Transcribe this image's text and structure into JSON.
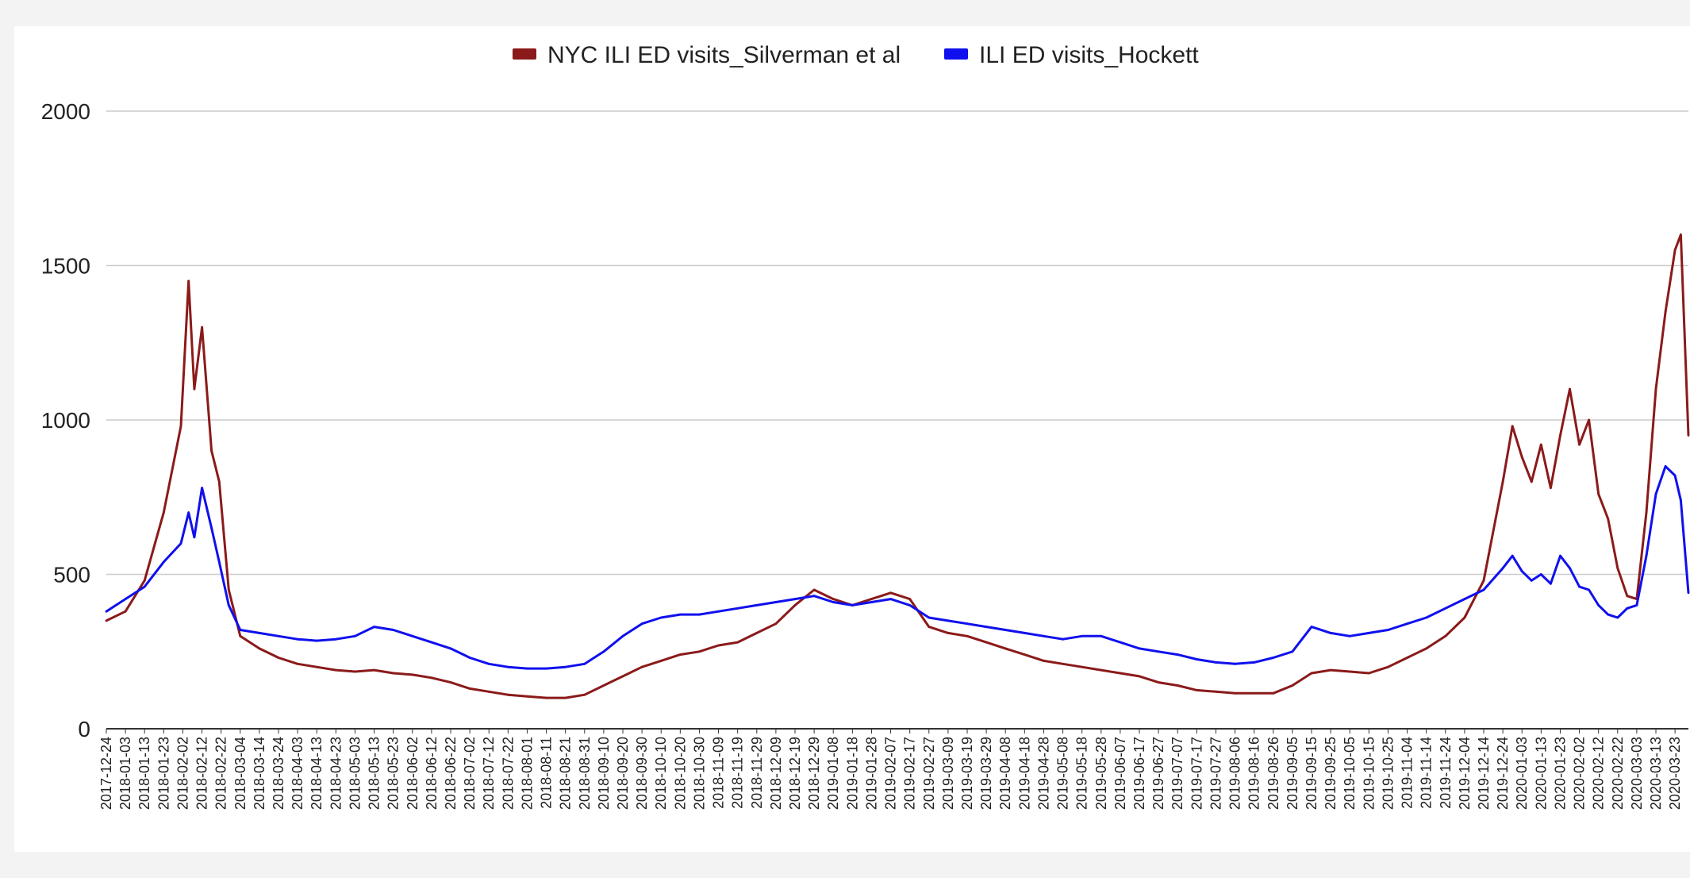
{
  "chart_data": {
    "type": "line",
    "title": "",
    "xlabel": "",
    "ylabel": "",
    "x_start": "2017-12-24",
    "x_end": "2020-03-30",
    "ylim": [
      0,
      2000
    ],
    "yticks": [
      0,
      500,
      1000,
      1500,
      2000
    ],
    "grid": true,
    "legend_position": "top-center",
    "xtick_labels": [
      "2017-12-24",
      "2018-01-03",
      "2018-01-13",
      "2018-01-23",
      "2018-02-02",
      "2018-02-12",
      "2018-02-22",
      "2018-03-04",
      "2018-03-14",
      "2018-03-24",
      "2018-04-03",
      "2018-04-13",
      "2018-04-23",
      "2018-05-03",
      "2018-05-13",
      "2018-05-23",
      "2018-06-02",
      "2018-06-12",
      "2018-06-22",
      "2018-07-02",
      "2018-07-12",
      "2018-07-22",
      "2018-08-01",
      "2018-08-11",
      "2018-08-21",
      "2018-08-31",
      "2018-09-10",
      "2018-09-20",
      "2018-09-30",
      "2018-10-10",
      "2018-10-20",
      "2018-10-30",
      "2018-11-09",
      "2018-11-19",
      "2018-11-29",
      "2018-12-09",
      "2018-12-19",
      "2018-12-29",
      "2019-01-08",
      "2019-01-18",
      "2019-01-28",
      "2019-02-07",
      "2019-02-17",
      "2019-02-27",
      "2019-03-09",
      "2019-03-19",
      "2019-03-29",
      "2019-04-08",
      "2019-04-18",
      "2019-04-28",
      "2019-05-08",
      "2019-05-18",
      "2019-05-28",
      "2019-06-07",
      "2019-06-17",
      "2019-06-27",
      "2019-07-07",
      "2019-07-17",
      "2019-07-27",
      "2019-08-06",
      "2019-08-16",
      "2019-08-26",
      "2019-09-05",
      "2019-09-15",
      "2019-09-25",
      "2019-10-05",
      "2019-10-15",
      "2019-10-25",
      "2019-11-04",
      "2019-11-14",
      "2019-11-24",
      "2019-12-04",
      "2019-12-14",
      "2019-12-24",
      "2020-01-03",
      "2020-01-13",
      "2020-01-23",
      "2020-02-02",
      "2020-02-12",
      "2020-02-22",
      "2020-03-03",
      "2020-03-13",
      "2020-03-23"
    ],
    "series": [
      {
        "name": "NYC ILI ED visits_Silverman et al",
        "color": "#8b1a1a",
        "points": [
          [
            "2017-12-24",
            350
          ],
          [
            "2018-01-03",
            380
          ],
          [
            "2018-01-13",
            480
          ],
          [
            "2018-01-23",
            700
          ],
          [
            "2018-02-01",
            980
          ],
          [
            "2018-02-05",
            1450
          ],
          [
            "2018-02-08",
            1100
          ],
          [
            "2018-02-12",
            1300
          ],
          [
            "2018-02-17",
            900
          ],
          [
            "2018-02-21",
            800
          ],
          [
            "2018-02-26",
            450
          ],
          [
            "2018-03-04",
            300
          ],
          [
            "2018-03-14",
            260
          ],
          [
            "2018-03-24",
            230
          ],
          [
            "2018-04-03",
            210
          ],
          [
            "2018-04-13",
            200
          ],
          [
            "2018-04-23",
            190
          ],
          [
            "2018-05-03",
            185
          ],
          [
            "2018-05-13",
            190
          ],
          [
            "2018-05-23",
            180
          ],
          [
            "2018-06-02",
            175
          ],
          [
            "2018-06-12",
            165
          ],
          [
            "2018-06-22",
            150
          ],
          [
            "2018-07-02",
            130
          ],
          [
            "2018-07-12",
            120
          ],
          [
            "2018-07-22",
            110
          ],
          [
            "2018-08-01",
            105
          ],
          [
            "2018-08-11",
            100
          ],
          [
            "2018-08-21",
            100
          ],
          [
            "2018-08-31",
            110
          ],
          [
            "2018-09-10",
            140
          ],
          [
            "2018-09-20",
            170
          ],
          [
            "2018-09-30",
            200
          ],
          [
            "2018-10-10",
            220
          ],
          [
            "2018-10-20",
            240
          ],
          [
            "2018-10-30",
            250
          ],
          [
            "2018-11-09",
            270
          ],
          [
            "2018-11-19",
            280
          ],
          [
            "2018-11-29",
            310
          ],
          [
            "2018-12-09",
            340
          ],
          [
            "2018-12-19",
            400
          ],
          [
            "2018-12-29",
            450
          ],
          [
            "2019-01-08",
            420
          ],
          [
            "2019-01-18",
            400
          ],
          [
            "2019-01-28",
            420
          ],
          [
            "2019-02-07",
            440
          ],
          [
            "2019-02-17",
            420
          ],
          [
            "2019-02-27",
            330
          ],
          [
            "2019-03-09",
            310
          ],
          [
            "2019-03-19",
            300
          ],
          [
            "2019-03-29",
            280
          ],
          [
            "2019-04-08",
            260
          ],
          [
            "2019-04-18",
            240
          ],
          [
            "2019-04-28",
            220
          ],
          [
            "2019-05-08",
            210
          ],
          [
            "2019-05-18",
            200
          ],
          [
            "2019-05-28",
            190
          ],
          [
            "2019-06-07",
            180
          ],
          [
            "2019-06-17",
            170
          ],
          [
            "2019-06-27",
            150
          ],
          [
            "2019-07-07",
            140
          ],
          [
            "2019-07-17",
            125
          ],
          [
            "2019-07-27",
            120
          ],
          [
            "2019-08-06",
            115
          ],
          [
            "2019-08-16",
            115
          ],
          [
            "2019-08-26",
            115
          ],
          [
            "2019-09-05",
            140
          ],
          [
            "2019-09-15",
            180
          ],
          [
            "2019-09-25",
            190
          ],
          [
            "2019-10-05",
            185
          ],
          [
            "2019-10-15",
            180
          ],
          [
            "2019-10-25",
            200
          ],
          [
            "2019-11-04",
            230
          ],
          [
            "2019-11-14",
            260
          ],
          [
            "2019-11-24",
            300
          ],
          [
            "2019-12-04",
            360
          ],
          [
            "2019-12-14",
            480
          ],
          [
            "2019-12-24",
            800
          ],
          [
            "2019-12-29",
            980
          ],
          [
            "2020-01-03",
            880
          ],
          [
            "2020-01-08",
            800
          ],
          [
            "2020-01-13",
            920
          ],
          [
            "2020-01-18",
            780
          ],
          [
            "2020-01-23",
            950
          ],
          [
            "2020-01-28",
            1100
          ],
          [
            "2020-02-02",
            920
          ],
          [
            "2020-02-07",
            1000
          ],
          [
            "2020-02-12",
            760
          ],
          [
            "2020-02-17",
            680
          ],
          [
            "2020-02-22",
            520
          ],
          [
            "2020-02-27",
            430
          ],
          [
            "2020-03-03",
            420
          ],
          [
            "2020-03-08",
            700
          ],
          [
            "2020-03-13",
            1100
          ],
          [
            "2020-03-18",
            1350
          ],
          [
            "2020-03-23",
            1550
          ],
          [
            "2020-03-26",
            1600
          ],
          [
            "2020-03-30",
            950
          ]
        ]
      },
      {
        "name": "ILI ED visits_Hockett",
        "color": "#1010ee",
        "points": [
          [
            "2017-12-24",
            380
          ],
          [
            "2018-01-03",
            420
          ],
          [
            "2018-01-13",
            460
          ],
          [
            "2018-01-23",
            540
          ],
          [
            "2018-02-01",
            600
          ],
          [
            "2018-02-05",
            700
          ],
          [
            "2018-02-08",
            620
          ],
          [
            "2018-02-12",
            780
          ],
          [
            "2018-02-17",
            650
          ],
          [
            "2018-02-21",
            540
          ],
          [
            "2018-02-26",
            400
          ],
          [
            "2018-03-04",
            320
          ],
          [
            "2018-03-14",
            310
          ],
          [
            "2018-03-24",
            300
          ],
          [
            "2018-04-03",
            290
          ],
          [
            "2018-04-13",
            285
          ],
          [
            "2018-04-23",
            290
          ],
          [
            "2018-05-03",
            300
          ],
          [
            "2018-05-13",
            330
          ],
          [
            "2018-05-23",
            320
          ],
          [
            "2018-06-02",
            300
          ],
          [
            "2018-06-12",
            280
          ],
          [
            "2018-06-22",
            260
          ],
          [
            "2018-07-02",
            230
          ],
          [
            "2018-07-12",
            210
          ],
          [
            "2018-07-22",
            200
          ],
          [
            "2018-08-01",
            195
          ],
          [
            "2018-08-11",
            195
          ],
          [
            "2018-08-21",
            200
          ],
          [
            "2018-08-31",
            210
          ],
          [
            "2018-09-10",
            250
          ],
          [
            "2018-09-20",
            300
          ],
          [
            "2018-09-30",
            340
          ],
          [
            "2018-10-10",
            360
          ],
          [
            "2018-10-20",
            370
          ],
          [
            "2018-10-30",
            370
          ],
          [
            "2018-11-09",
            380
          ],
          [
            "2018-11-19",
            390
          ],
          [
            "2018-11-29",
            400
          ],
          [
            "2018-12-09",
            410
          ],
          [
            "2018-12-19",
            420
          ],
          [
            "2018-12-29",
            430
          ],
          [
            "2019-01-08",
            410
          ],
          [
            "2019-01-18",
            400
          ],
          [
            "2019-01-28",
            410
          ],
          [
            "2019-02-07",
            420
          ],
          [
            "2019-02-17",
            400
          ],
          [
            "2019-02-27",
            360
          ],
          [
            "2019-03-09",
            350
          ],
          [
            "2019-03-19",
            340
          ],
          [
            "2019-03-29",
            330
          ],
          [
            "2019-04-08",
            320
          ],
          [
            "2019-04-18",
            310
          ],
          [
            "2019-04-28",
            300
          ],
          [
            "2019-05-08",
            290
          ],
          [
            "2019-05-18",
            300
          ],
          [
            "2019-05-28",
            300
          ],
          [
            "2019-06-07",
            280
          ],
          [
            "2019-06-17",
            260
          ],
          [
            "2019-06-27",
            250
          ],
          [
            "2019-07-07",
            240
          ],
          [
            "2019-07-17",
            225
          ],
          [
            "2019-07-27",
            215
          ],
          [
            "2019-08-06",
            210
          ],
          [
            "2019-08-16",
            215
          ],
          [
            "2019-08-26",
            230
          ],
          [
            "2019-09-05",
            250
          ],
          [
            "2019-09-15",
            330
          ],
          [
            "2019-09-25",
            310
          ],
          [
            "2019-10-05",
            300
          ],
          [
            "2019-10-15",
            310
          ],
          [
            "2019-10-25",
            320
          ],
          [
            "2019-11-04",
            340
          ],
          [
            "2019-11-14",
            360
          ],
          [
            "2019-11-24",
            390
          ],
          [
            "2019-12-04",
            420
          ],
          [
            "2019-12-14",
            450
          ],
          [
            "2019-12-24",
            520
          ],
          [
            "2019-12-29",
            560
          ],
          [
            "2020-01-03",
            510
          ],
          [
            "2020-01-08",
            480
          ],
          [
            "2020-01-13",
            500
          ],
          [
            "2020-01-18",
            470
          ],
          [
            "2020-01-23",
            560
          ],
          [
            "2020-01-28",
            520
          ],
          [
            "2020-02-02",
            460
          ],
          [
            "2020-02-07",
            450
          ],
          [
            "2020-02-12",
            400
          ],
          [
            "2020-02-17",
            370
          ],
          [
            "2020-02-22",
            360
          ],
          [
            "2020-02-27",
            390
          ],
          [
            "2020-03-03",
            400
          ],
          [
            "2020-03-08",
            560
          ],
          [
            "2020-03-13",
            760
          ],
          [
            "2020-03-18",
            850
          ],
          [
            "2020-03-23",
            820
          ],
          [
            "2020-03-26",
            740
          ],
          [
            "2020-03-30",
            440
          ]
        ]
      }
    ]
  }
}
